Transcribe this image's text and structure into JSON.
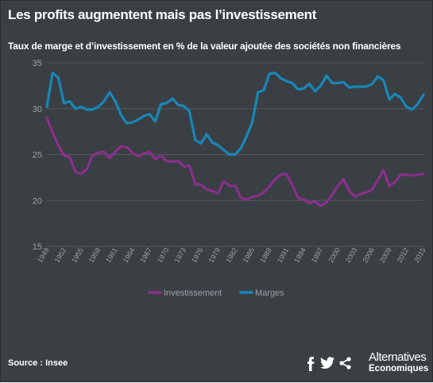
{
  "header": {
    "title": "Les profits augmentent mais pas l’investissement",
    "subtitle": "Taux de marge et d’investissement en % de la valeur ajoutée des sociétés non financières"
  },
  "footer": {
    "source": "Source : Insee",
    "brand_line1": "Alternatives",
    "brand_line2": "Economiques",
    "social_icons": [
      "facebook-icon",
      "twitter-icon",
      "share-icon"
    ]
  },
  "colors": {
    "background": "#3a3f44",
    "investissement": "#8a2f8c",
    "marges": "#1a86b8",
    "grid": "#55595e",
    "text_muted": "#9aa0a6"
  },
  "chart_data": {
    "type": "line",
    "ylim": [
      15,
      35
    ],
    "yticks": [
      "15",
      "20",
      "25",
      "30",
      "35"
    ],
    "xlim": [
      1949,
      2015
    ],
    "xticks": [
      "1949",
      "1952",
      "1955",
      "1958",
      "1961",
      "1964",
      "1967",
      "1970",
      "1973",
      "1976",
      "1979",
      "1982",
      "1985",
      "1988",
      "1991",
      "1994",
      "1997",
      "2000",
      "2003",
      "2006",
      "2009",
      "2012",
      "2015"
    ],
    "grid": "horizontal",
    "legend": "bottom",
    "x": [
      1949,
      1950,
      1951,
      1952,
      1953,
      1954,
      1955,
      1956,
      1957,
      1958,
      1959,
      1960,
      1961,
      1962,
      1963,
      1964,
      1965,
      1966,
      1967,
      1968,
      1969,
      1970,
      1971,
      1972,
      1973,
      1974,
      1975,
      1976,
      1977,
      1978,
      1979,
      1980,
      1981,
      1982,
      1983,
      1984,
      1985,
      1986,
      1987,
      1988,
      1989,
      1990,
      1991,
      1992,
      1993,
      1994,
      1995,
      1996,
      1997,
      1998,
      1999,
      2000,
      2001,
      2002,
      2003,
      2004,
      2005,
      2006,
      2007,
      2008,
      2009,
      2010,
      2011,
      2012,
      2013,
      2014,
      2015
    ],
    "series": [
      {
        "name": "Investissement",
        "values": [
          29.0,
          27.4,
          26.0,
          24.9,
          24.7,
          23.1,
          22.9,
          23.4,
          24.9,
          25.2,
          25.3,
          24.6,
          25.3,
          25.9,
          25.8,
          25.2,
          24.8,
          25.1,
          25.3,
          24.5,
          24.9,
          24.3,
          24.2,
          24.3,
          23.7,
          23.8,
          21.8,
          21.7,
          21.2,
          21.0,
          20.8,
          22.1,
          21.6,
          21.6,
          20.3,
          20.1,
          20.4,
          20.5,
          20.9,
          21.5,
          22.3,
          22.8,
          22.9,
          21.7,
          20.3,
          20.1,
          19.7,
          19.9,
          19.4,
          19.8,
          20.6,
          21.6,
          22.3,
          21.0,
          20.4,
          20.7,
          20.9,
          21.2,
          22.2,
          23.3,
          21.6,
          22.0,
          22.8,
          22.8,
          22.7,
          22.8,
          22.9
        ]
      },
      {
        "name": "Marges",
        "values": [
          30.2,
          33.9,
          33.4,
          30.6,
          30.8,
          30.0,
          30.2,
          29.9,
          29.9,
          30.2,
          30.8,
          31.8,
          30.8,
          29.3,
          28.4,
          28.5,
          28.8,
          29.2,
          29.4,
          28.6,
          30.5,
          30.6,
          31.1,
          30.4,
          30.3,
          29.7,
          26.6,
          26.2,
          27.2,
          26.3,
          26.0,
          25.5,
          25.0,
          25.0,
          25.7,
          27.0,
          28.5,
          31.8,
          32.0,
          33.8,
          33.9,
          33.3,
          33.0,
          32.8,
          32.1,
          32.2,
          32.7,
          31.9,
          32.5,
          33.6,
          32.8,
          32.8,
          32.9,
          32.3,
          32.4,
          32.4,
          32.4,
          32.7,
          33.5,
          33.1,
          31.0,
          31.6,
          31.2,
          30.2,
          29.9,
          30.5,
          31.5
        ]
      }
    ]
  }
}
